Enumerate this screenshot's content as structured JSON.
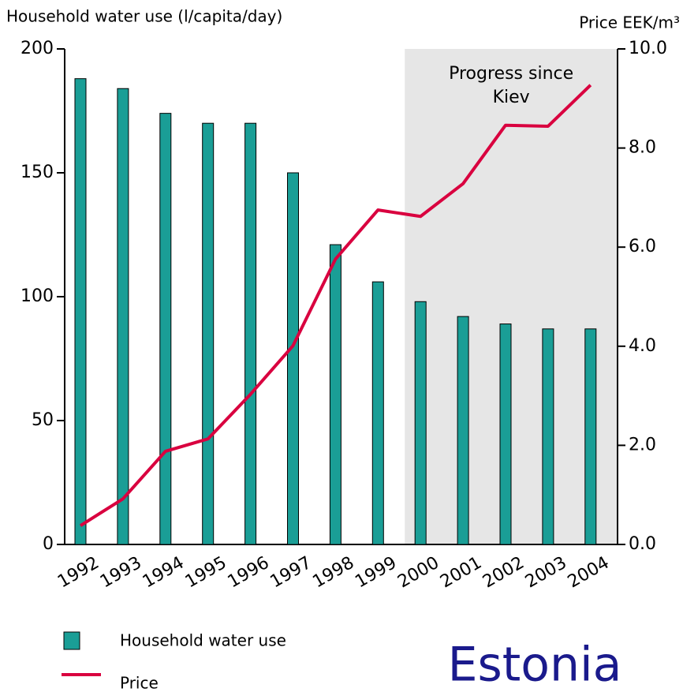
{
  "chart_data": {
    "type": "bar_line",
    "y_axis_label": "Household water use (l/capita/day)",
    "y2_axis_label": "Price EEK/m³",
    "annotation_lines": [
      "Progress since",
      "Kiev"
    ],
    "highlight_from": "2000",
    "highlight_color": "#e6e6e6",
    "country_label": "Estonia",
    "categories": [
      "1992",
      "1993",
      "1994",
      "1995",
      "1996",
      "1997",
      "1998",
      "1999",
      "2000",
      "2001",
      "2002",
      "2003",
      "2004"
    ],
    "series": [
      {
        "name": "Household water use",
        "type": "bar",
        "color": "#1a9e96",
        "values": [
          188,
          184,
          174,
          170,
          170,
          150,
          121,
          106,
          98,
          92,
          89,
          87,
          87
        ]
      },
      {
        "name": "Price",
        "type": "line",
        "axis": "y2",
        "color": "#d9003f",
        "values": [
          0.38,
          0.92,
          1.88,
          2.13,
          3.03,
          4.01,
          5.76,
          6.75,
          6.62,
          7.28,
          8.46,
          8.44,
          9.27
        ]
      }
    ],
    "ylim": [
      0,
      200
    ],
    "yticks": [
      0,
      50,
      100,
      150,
      200
    ],
    "y2lim": [
      0,
      10
    ],
    "y2ticks": [
      {
        "value": 0,
        "label": "0.0"
      },
      {
        "value": 2,
        "label": "2.0"
      },
      {
        "value": 4,
        "label": "4.0"
      },
      {
        "value": 6,
        "label": "6.0"
      },
      {
        "value": 8,
        "label": "8.0"
      },
      {
        "value": 10,
        "label": "10.0"
      }
    ]
  }
}
